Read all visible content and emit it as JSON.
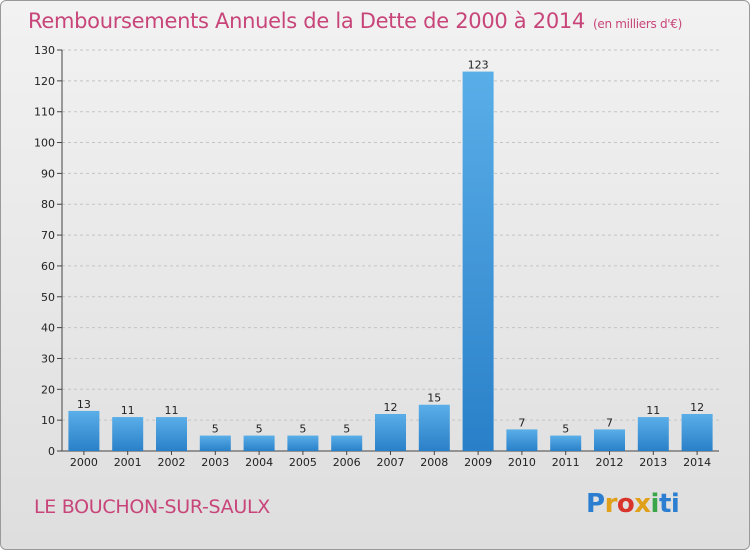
{
  "title": "Remboursements Annuels de la Dette de 2000 à 2014",
  "unit": "(en milliers d'€)",
  "commune": "LE BOUCHON-SUR-SAULX",
  "logo": {
    "p1": "P",
    "p2": "r",
    "p3": "o",
    "p4": "x",
    "p5": "i",
    "p6": "ti"
  },
  "colors": {
    "title": "#c8457a",
    "bar_light": "#5aaee8",
    "bar_dark": "#2a80c8"
  },
  "chart_data": {
    "type": "bar",
    "title": "Remboursements Annuels de la Dette de 2000 à 2014",
    "xlabel": "",
    "ylabel": "",
    "categories": [
      "2000",
      "2001",
      "2002",
      "2003",
      "2004",
      "2005",
      "2006",
      "2007",
      "2008",
      "2009",
      "2010",
      "2011",
      "2012",
      "2013",
      "2014"
    ],
    "values": [
      13,
      11,
      11,
      5,
      5,
      5,
      5,
      12,
      15,
      123,
      7,
      5,
      7,
      11,
      12
    ],
    "ylim": [
      0,
      130
    ],
    "yticks": [
      0,
      10,
      20,
      30,
      40,
      50,
      60,
      70,
      80,
      90,
      100,
      110,
      120,
      130
    ],
    "grid": true
  }
}
